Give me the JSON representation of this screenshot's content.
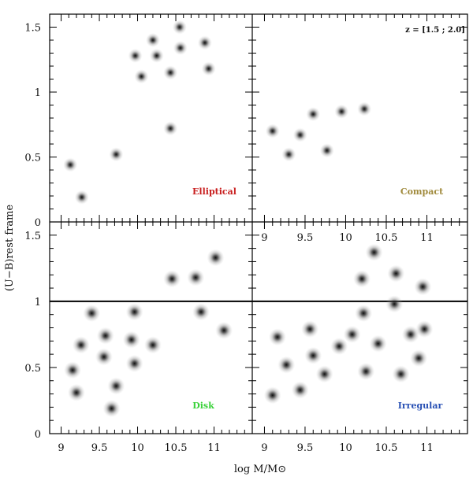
{
  "chart_data": {
    "type": "scatter",
    "xlabel": "log M/M⊙",
    "ylabel": "(U−B)rest frame",
    "xlim": [
      8.85,
      11.5
    ],
    "ylim": [
      0,
      1.6
    ],
    "xticks": [
      "9",
      "9.5",
      "10",
      "10.5",
      "11"
    ],
    "yticks": [
      "0",
      "0.5",
      "1",
      "1.5"
    ],
    "reference_line_y": 1.0,
    "redshift_label": "z = [1.5 ; 2.0]",
    "panels": [
      {
        "name": "Elliptical",
        "color": "#c81e1e",
        "points": [
          {
            "x": 9.12,
            "y": 0.44
          },
          {
            "x": 9.27,
            "y": 0.19
          },
          {
            "x": 9.72,
            "y": 0.52
          },
          {
            "x": 9.97,
            "y": 1.28
          },
          {
            "x": 10.05,
            "y": 1.12
          },
          {
            "x": 10.2,
            "y": 1.4
          },
          {
            "x": 10.25,
            "y": 1.28
          },
          {
            "x": 10.43,
            "y": 1.15
          },
          {
            "x": 10.43,
            "y": 0.72
          },
          {
            "x": 10.55,
            "y": 1.5
          },
          {
            "x": 10.56,
            "y": 1.34
          },
          {
            "x": 10.88,
            "y": 1.38
          },
          {
            "x": 10.93,
            "y": 1.18
          }
        ]
      },
      {
        "name": "Compact",
        "color": "#a08a3c",
        "points": [
          {
            "x": 9.1,
            "y": 0.7
          },
          {
            "x": 9.3,
            "y": 0.52
          },
          {
            "x": 9.44,
            "y": 0.67
          },
          {
            "x": 9.6,
            "y": 0.83
          },
          {
            "x": 9.77,
            "y": 0.55
          },
          {
            "x": 9.95,
            "y": 0.85
          },
          {
            "x": 10.23,
            "y": 0.87
          }
        ]
      },
      {
        "name": "Disk",
        "color": "#3cd23c",
        "points": [
          {
            "x": 9.15,
            "y": 0.48
          },
          {
            "x": 9.2,
            "y": 0.31
          },
          {
            "x": 9.26,
            "y": 0.67
          },
          {
            "x": 9.4,
            "y": 0.91
          },
          {
            "x": 9.56,
            "y": 0.58
          },
          {
            "x": 9.58,
            "y": 0.74
          },
          {
            "x": 9.66,
            "y": 0.19
          },
          {
            "x": 9.72,
            "y": 0.36
          },
          {
            "x": 9.92,
            "y": 0.71
          },
          {
            "x": 9.96,
            "y": 0.92
          },
          {
            "x": 9.96,
            "y": 0.53
          },
          {
            "x": 10.2,
            "y": 0.67
          },
          {
            "x": 10.45,
            "y": 1.17
          },
          {
            "x": 10.76,
            "y": 1.18
          },
          {
            "x": 10.83,
            "y": 0.92
          },
          {
            "x": 11.02,
            "y": 1.33
          },
          {
            "x": 11.13,
            "y": 0.78
          }
        ]
      },
      {
        "name": "Irregular",
        "color": "#2850b4",
        "points": [
          {
            "x": 9.1,
            "y": 0.29
          },
          {
            "x": 9.16,
            "y": 0.73
          },
          {
            "x": 9.27,
            "y": 0.52
          },
          {
            "x": 9.44,
            "y": 0.33
          },
          {
            "x": 9.56,
            "y": 0.79
          },
          {
            "x": 9.6,
            "y": 0.59
          },
          {
            "x": 9.74,
            "y": 0.45
          },
          {
            "x": 9.92,
            "y": 0.66
          },
          {
            "x": 10.08,
            "y": 0.75
          },
          {
            "x": 10.2,
            "y": 1.17
          },
          {
            "x": 10.22,
            "y": 0.91
          },
          {
            "x": 10.25,
            "y": 0.47
          },
          {
            "x": 10.35,
            "y": 1.37
          },
          {
            "x": 10.4,
            "y": 0.68
          },
          {
            "x": 10.6,
            "y": 0.98
          },
          {
            "x": 10.62,
            "y": 1.21
          },
          {
            "x": 10.68,
            "y": 0.45
          },
          {
            "x": 10.8,
            "y": 0.75
          },
          {
            "x": 10.9,
            "y": 0.57
          },
          {
            "x": 10.95,
            "y": 1.11
          },
          {
            "x": 10.97,
            "y": 0.79
          }
        ]
      }
    ]
  }
}
